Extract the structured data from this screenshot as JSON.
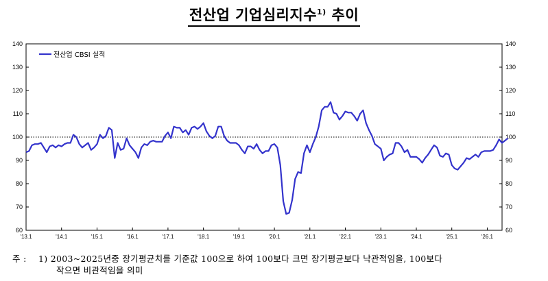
{
  "title": "전산업 기업심리지수",
  "title_sup": "1)",
  "title_suffix": " 추이",
  "footnote": {
    "marker": "주 :",
    "line1": "1) 2003~2025년중 장기평균치를 기준값 100으로 하여 100보다 크면 장기평균보다 낙관적임을, 100보다",
    "line2": "작으면 비관적임을 의미"
  },
  "colors": {
    "series": "#3333cc",
    "reference_line": "#000000",
    "axis": "#000000"
  },
  "chart_data": {
    "type": "line",
    "title": "전산업 기업심리지수 추이",
    "xlabel": "",
    "ylabel": "",
    "ylim": [
      60,
      140
    ],
    "yticks": [
      60,
      70,
      80,
      90,
      100,
      110,
      120,
      130,
      140
    ],
    "secondary_y_axis": true,
    "x_start": "2013-01",
    "x_end": "2026-06",
    "x_frequency": "monthly",
    "xtick_labels": [
      "'13.1",
      "'14.1",
      "'15.1",
      "'16.1",
      "'17.1",
      "'18.1",
      "'19.1",
      "'20.1",
      "'21.1",
      "'22.1",
      "'23.1",
      "'24.1",
      "'25.1",
      "'26.1"
    ],
    "reference_line": {
      "y": 100,
      "style": "dotted"
    },
    "legend": {
      "position": "top-left",
      "entries": [
        "전산업 CBSI 실적"
      ]
    },
    "grid": false,
    "series": [
      {
        "name": "전산업 CBSI 실적",
        "values": [
          93.5,
          94.0,
          96.5,
          97.0,
          97.0,
          97.5,
          95.5,
          93.5,
          96.0,
          96.5,
          95.5,
          96.5,
          96.0,
          97.0,
          97.5,
          97.5,
          101.0,
          100.0,
          97.0,
          95.5,
          96.5,
          97.5,
          94.5,
          95.5,
          97.0,
          101.0,
          99.5,
          100.5,
          104.0,
          103.0,
          91.0,
          97.5,
          94.5,
          95.0,
          99.5,
          96.5,
          95.0,
          93.5,
          91.0,
          95.5,
          97.0,
          96.5,
          98.0,
          98.5,
          98.0,
          98.0,
          98.0,
          100.5,
          102.0,
          99.5,
          104.5,
          104.0,
          104.0,
          102.0,
          103.0,
          101.0,
          104.0,
          104.5,
          103.5,
          104.5,
          106.0,
          102.5,
          100.5,
          99.5,
          100.5,
          104.5,
          104.5,
          100.5,
          98.5,
          97.5,
          97.5,
          97.5,
          96.5,
          94.5,
          93.0,
          96.0,
          96.0,
          95.0,
          97.0,
          94.5,
          93.0,
          94.0,
          94.0,
          96.5,
          97.0,
          95.5,
          88.0,
          72.5,
          67.0,
          67.5,
          73.0,
          82.0,
          85.0,
          84.5,
          93.0,
          96.5,
          93.5,
          97.0,
          100.0,
          104.5,
          111.5,
          113.0,
          113.0,
          115.0,
          110.5,
          110.0,
          107.5,
          109.0,
          111.0,
          110.5,
          110.5,
          109.0,
          107.0,
          110.0,
          111.5,
          106.0,
          103.0,
          100.5,
          97.0,
          96.0,
          95.0,
          90.0,
          91.5,
          92.5,
          93.0,
          97.5,
          97.5,
          96.0,
          93.5,
          94.5,
          91.5,
          91.5,
          91.5,
          90.5,
          89.0,
          91.0,
          92.5,
          94.5,
          96.5,
          95.5,
          92.0,
          91.5,
          93.0,
          92.5,
          88.0,
          86.5,
          86.0,
          87.5,
          89.0,
          91.0,
          90.5,
          91.5,
          92.5,
          91.5,
          93.5,
          94.0,
          94.0,
          94.0,
          94.5,
          96.5,
          99.0,
          97.5,
          98.5,
          99.5
        ]
      }
    ]
  }
}
